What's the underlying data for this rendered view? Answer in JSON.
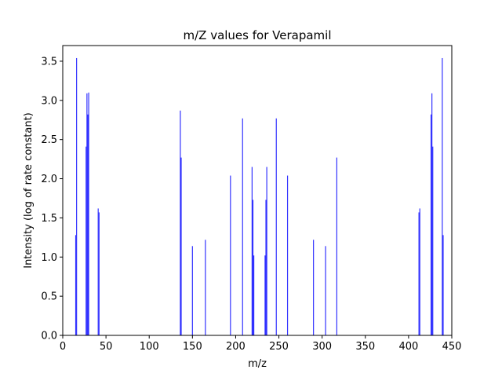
{
  "chart_data": {
    "type": "bar",
    "title": "m/Z values for Verapamil",
    "xlabel": "m/z",
    "ylabel": "Intensity (log of rate constant)",
    "xlim": [
      0,
      450
    ],
    "ylim": [
      0,
      3.7
    ],
    "xticks": [
      "0",
      "50",
      "100",
      "150",
      "200",
      "250",
      "300",
      "350",
      "400",
      "450"
    ],
    "yticks": [
      "0.0",
      "0.5",
      "1.0",
      "1.5",
      "2.0",
      "2.5",
      "3.0",
      "3.5"
    ],
    "grid": false,
    "bar_color": "#0000ff",
    "series": [
      {
        "x": [
          15,
          16,
          27,
          28,
          29,
          30,
          41,
          42,
          136,
          137,
          150,
          165,
          194,
          208,
          219,
          220,
          221,
          234,
          235,
          236,
          247,
          260,
          290,
          304,
          317,
          412,
          413,
          426,
          427,
          428,
          439,
          440
        ],
        "values": [
          1.28,
          3.54,
          2.41,
          3.09,
          2.82,
          3.1,
          1.62,
          1.57,
          2.87,
          2.27,
          1.14,
          1.22,
          2.04,
          2.77,
          2.15,
          1.73,
          1.02,
          1.02,
          1.73,
          2.15,
          2.77,
          2.04,
          1.22,
          1.14,
          2.27,
          1.57,
          1.62,
          2.82,
          3.09,
          2.41,
          3.54,
          1.28
        ]
      }
    ]
  }
}
